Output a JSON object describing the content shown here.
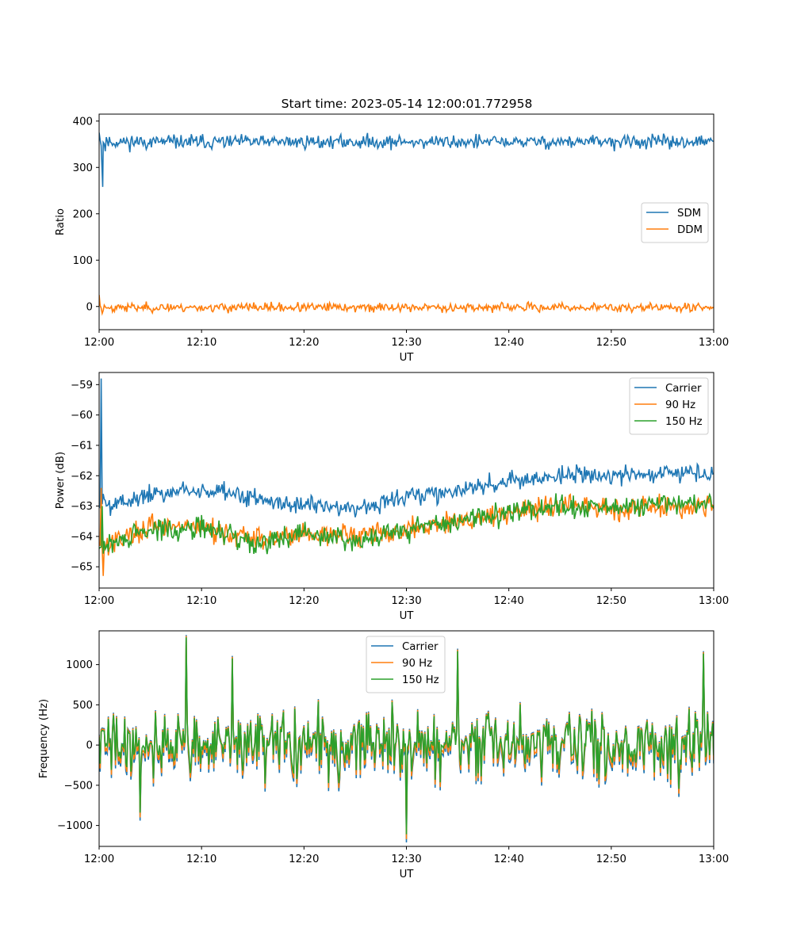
{
  "figure_title": "Start time: 2023-05-14 12:00:01.772958",
  "chart_data": [
    {
      "type": "line",
      "xlabel": "UT",
      "ylabel": "Ratio",
      "xlim": [
        "12:00",
        "13:00"
      ],
      "ylim": [
        -50,
        415
      ],
      "xticks": [
        "12:00",
        "12:10",
        "12:20",
        "12:30",
        "12:40",
        "12:50",
        "13:00"
      ],
      "yticks": [
        0,
        100,
        200,
        300,
        400
      ],
      "legend": "center-right",
      "series": [
        {
          "name": "SDM",
          "color": "#1f77b4",
          "mean": 355,
          "noise": 14,
          "seed": 11,
          "points": [
            [
              0,
              375
            ],
            [
              0.35,
              258
            ],
            [
              0.6,
              335
            ]
          ]
        },
        {
          "name": "DDM",
          "color": "#ff7f0e",
          "mean": -2,
          "noise": 9,
          "seed": 23,
          "points": [
            [
              0,
              25
            ],
            [
              0.3,
              -15
            ]
          ]
        }
      ]
    },
    {
      "type": "line",
      "xlabel": "UT",
      "ylabel": "Power (dB)",
      "xlim": [
        "12:00",
        "13:00"
      ],
      "ylim": [
        -65.7,
        -58.6
      ],
      "xticks": [
        "12:00",
        "12:10",
        "12:20",
        "12:30",
        "12:40",
        "12:50",
        "13:00"
      ],
      "yticks": [
        -65,
        -64,
        -63,
        -62,
        -61,
        -60,
        -59
      ],
      "legend": "upper-right",
      "series": [
        {
          "name": "Carrier",
          "color": "#1f77b4",
          "noise": 0.3,
          "seed": 5,
          "trend": [
            [
              0,
              -63.0
            ],
            [
              5,
              -62.6
            ],
            [
              10,
              -62.5
            ],
            [
              15,
              -62.7
            ],
            [
              20,
              -63.0
            ],
            [
              25,
              -63.1
            ],
            [
              30,
              -62.7
            ],
            [
              35,
              -62.5
            ],
            [
              40,
              -62.2
            ],
            [
              45,
              -62.0
            ],
            [
              50,
              -62.0
            ],
            [
              55,
              -61.9
            ],
            [
              60,
              -62.0
            ]
          ],
          "points": [
            [
              0,
              -63.0
            ],
            [
              0.2,
              -58.8
            ],
            [
              0.4,
              -62.6
            ]
          ]
        },
        {
          "name": "90 Hz",
          "color": "#ff7f0e",
          "noise": 0.35,
          "seed": 17,
          "trend": [
            [
              0,
              -64.3
            ],
            [
              5,
              -63.7
            ],
            [
              10,
              -63.7
            ],
            [
              15,
              -64.1
            ],
            [
              20,
              -63.9
            ],
            [
              25,
              -64.0
            ],
            [
              30,
              -63.8
            ],
            [
              35,
              -63.5
            ],
            [
              40,
              -63.2
            ],
            [
              45,
              -63.0
            ],
            [
              50,
              -63.1
            ],
            [
              55,
              -63.0
            ],
            [
              60,
              -63.0
            ]
          ],
          "points": [
            [
              0,
              -64.2
            ],
            [
              0.2,
              -62.4
            ],
            [
              0.4,
              -65.3
            ]
          ]
        },
        {
          "name": "150 Hz",
          "color": "#2ca02c",
          "noise": 0.35,
          "seed": 29,
          "trend": [
            [
              0,
              -64.4
            ],
            [
              5,
              -63.8
            ],
            [
              10,
              -63.7
            ],
            [
              15,
              -64.2
            ],
            [
              20,
              -63.9
            ],
            [
              25,
              -64.1
            ],
            [
              30,
              -63.8
            ],
            [
              35,
              -63.5
            ],
            [
              40,
              -63.2
            ],
            [
              45,
              -63.0
            ],
            [
              50,
              -63.1
            ],
            [
              55,
              -62.9
            ],
            [
              60,
              -63.0
            ]
          ],
          "points": [
            [
              0,
              -64.4
            ],
            [
              0.3,
              -63.0
            ]
          ]
        }
      ]
    },
    {
      "type": "line",
      "xlabel": "UT",
      "ylabel": "Frequency (Hz)",
      "xlim": [
        "12:00",
        "13:00"
      ],
      "ylim": [
        -1260,
        1420
      ],
      "xticks": [
        "12:00",
        "12:10",
        "12:20",
        "12:30",
        "12:40",
        "12:50",
        "13:00"
      ],
      "yticks": [
        -1000,
        -500,
        0,
        500,
        1000
      ],
      "legend": "upper-center",
      "series": [
        {
          "name": "Carrier",
          "color": "#1f77b4",
          "offset": -60,
          "scale": 1.0
        },
        {
          "name": "90 Hz",
          "color": "#ff7f0e",
          "offset": -20,
          "scale": 1.0
        },
        {
          "name": "150 Hz",
          "color": "#2ca02c",
          "offset": 40,
          "scale": 1.0
        }
      ],
      "shared_noise": {
        "seed": 41,
        "amplitude": 380,
        "peaks": [
          [
            8.5,
            1350
          ],
          [
            35.0,
            1180
          ],
          [
            30.0,
            -1150
          ],
          [
            13.0,
            1090
          ],
          [
            4.0,
            -880
          ],
          [
            59.0,
            1150
          ]
        ]
      }
    }
  ]
}
